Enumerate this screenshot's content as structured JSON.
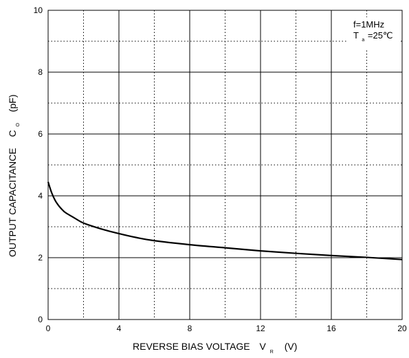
{
  "chart_data": {
    "type": "line",
    "xlabel": {
      "main": "REVERSE BIAS VOLTAGE",
      "symbol": "V",
      "subscript": "R",
      "unit": "(V)"
    },
    "ylabel": {
      "main": "OUTPUT CAPACITANCE",
      "symbol": "C",
      "subscript": "O",
      "unit": "(pF)"
    },
    "xlim": [
      0,
      20
    ],
    "ylim": [
      0,
      10
    ],
    "x_ticks": [
      0,
      4,
      8,
      12,
      16,
      20
    ],
    "y_ticks": [
      0,
      2,
      4,
      6,
      8,
      10
    ],
    "major_grid_x": [
      0,
      4,
      8,
      12,
      16,
      20
    ],
    "major_grid_y": [
      0,
      2,
      4,
      6,
      8,
      10
    ],
    "minor_grid_x": [
      2,
      6,
      10,
      14,
      18
    ],
    "minor_grid_y": [
      1,
      3,
      5,
      7,
      9
    ],
    "grid": true,
    "annotations": {
      "line1": "f=1MHz",
      "line2_symbol": "T",
      "line2_subscript": "a",
      "line2_value": "=25℃"
    },
    "series": [
      {
        "x": [
          0,
          0.2,
          0.4,
          0.6,
          0.8,
          1.0,
          1.5,
          2.0,
          3,
          4,
          5,
          6,
          8,
          10,
          12,
          14,
          16,
          18,
          20
        ],
        "y": [
          4.45,
          4.1,
          3.85,
          3.68,
          3.55,
          3.45,
          3.28,
          3.12,
          2.93,
          2.78,
          2.65,
          2.55,
          2.42,
          2.32,
          2.22,
          2.14,
          2.07,
          2.01,
          1.94
        ]
      }
    ]
  }
}
